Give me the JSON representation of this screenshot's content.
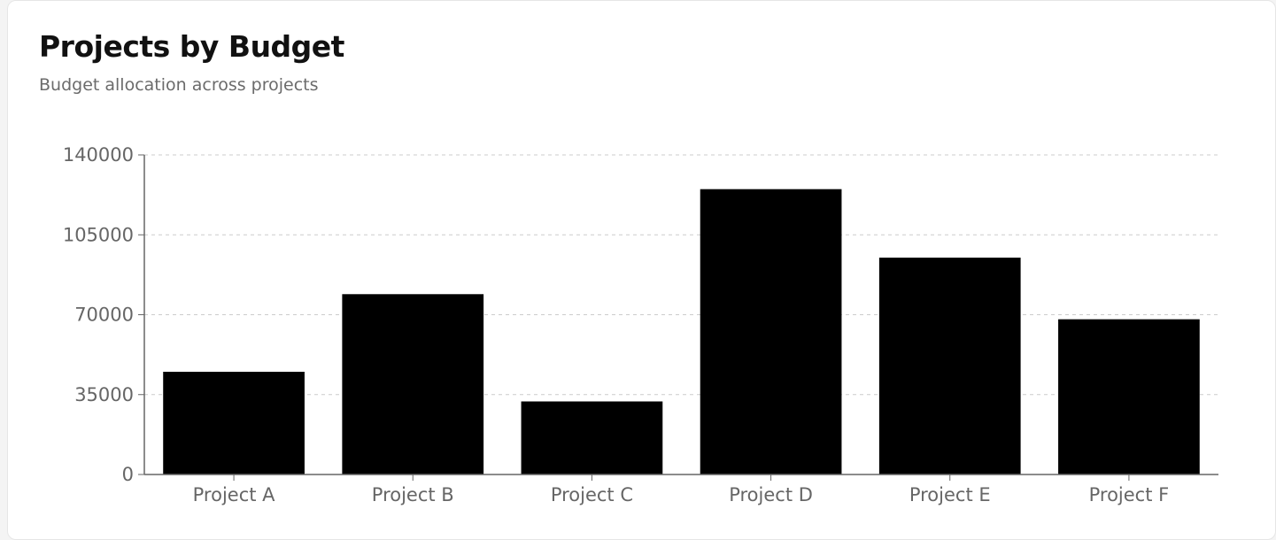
{
  "header": {
    "title": "Projects by Budget",
    "subtitle": "Budget allocation across projects"
  },
  "colors": {
    "bar": "#000000",
    "grid": "#cccccc",
    "axis": "#666666"
  },
  "chart_data": {
    "type": "bar",
    "title": "Projects by Budget",
    "subtitle": "Budget allocation across projects",
    "categories": [
      "Project A",
      "Project B",
      "Project C",
      "Project D",
      "Project E",
      "Project F"
    ],
    "values": [
      45000,
      79000,
      32000,
      125000,
      95000,
      68000
    ],
    "yticks": [
      0,
      35000,
      70000,
      105000,
      140000
    ],
    "ylim": [
      0,
      140000
    ],
    "grid": true,
    "legend": false
  }
}
